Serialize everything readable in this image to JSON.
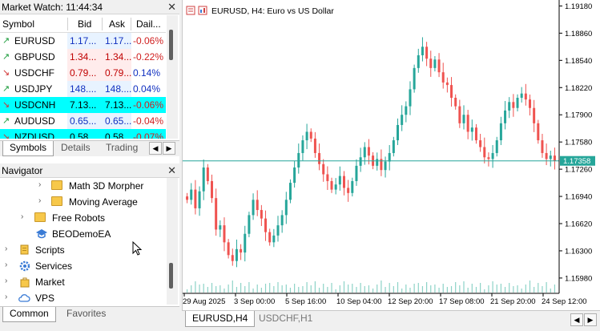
{
  "market_watch": {
    "title": "Market Watch: 11:44:34",
    "columns": [
      "Symbol",
      "Bid",
      "Ask",
      "Dail..."
    ],
    "rows": [
      {
        "arrow": "↗",
        "symbol": "EURUSD",
        "bid": "1.17...",
        "ask": "1.17...",
        "daily": "-0.06%",
        "dir": "up",
        "highlight": false,
        "bidbg": "#e8f3ff",
        "askbg": "#e8f3ff"
      },
      {
        "arrow": "↗",
        "symbol": "GBPUSD",
        "bid": "1.34...",
        "ask": "1.34...",
        "daily": "-0.22%",
        "dir": "up",
        "highlight": false,
        "bidbg": "#ffecec",
        "askbg": "#ffecec"
      },
      {
        "arrow": "↘",
        "symbol": "USDCHF",
        "bid": "0.79...",
        "ask": "0.79...",
        "daily": "0.14%",
        "dir": "down",
        "highlight": false,
        "bidbg": "#ffecec",
        "askbg": "#ffecec"
      },
      {
        "arrow": "↗",
        "symbol": "USDJPY",
        "bid": "148....",
        "ask": "148....",
        "daily": "0.04%",
        "dir": "up",
        "highlight": false,
        "bidbg": "#e8f3ff",
        "askbg": "#e8f3ff"
      },
      {
        "arrow": "↘",
        "symbol": "USDCNH",
        "bid": "7.13...",
        "ask": "7.13...",
        "daily": "-0.06%",
        "dir": "down",
        "highlight": true,
        "bidbg": "#00ffff",
        "askbg": "#00ffff"
      },
      {
        "arrow": "↗",
        "symbol": "AUDUSD",
        "bid": "0.65...",
        "ask": "0.65...",
        "daily": "-0.04%",
        "dir": "up",
        "highlight": false,
        "bidbg": "#e8f3ff",
        "askbg": "#e8f3ff"
      },
      {
        "arrow": "↘",
        "symbol": "NZDUSD",
        "bid": "0.58...",
        "ask": "0.58...",
        "daily": "-0.07%",
        "dir": "down",
        "highlight": true,
        "bidbg": "#00ffff",
        "askbg": "#00ffff"
      }
    ],
    "tabs": [
      "Symbols",
      "Details",
      "Trading"
    ]
  },
  "navigator": {
    "title": "Navigator",
    "items": [
      {
        "label": "Math 3D Morpher",
        "icon": "folder-icon",
        "expander": "›"
      },
      {
        "label": "Moving Average",
        "icon": "folder-icon",
        "expander": "›"
      },
      {
        "label": "Free Robots",
        "icon": "folder-icon",
        "expander": "›"
      },
      {
        "label": "BEODemoEA",
        "icon": "graduation-cap-icon",
        "expander": ""
      },
      {
        "label": "Scripts",
        "icon": "scripts-icon",
        "expander": "›"
      },
      {
        "label": "Services",
        "icon": "gear-icon",
        "expander": "›"
      },
      {
        "label": "Market",
        "icon": "market-bag-icon",
        "expander": "›"
      },
      {
        "label": "VPS",
        "icon": "cloud-icon",
        "expander": "›"
      }
    ],
    "tabs": [
      "Common",
      "Favorites"
    ]
  },
  "chart": {
    "title": "EURUSD, H4:  Euro vs US Dollar",
    "current_price": "1.17358",
    "tabs": [
      "EURUSD,H4",
      "USDCHF,H1"
    ],
    "colors": {
      "bull": "#26a69a",
      "bear": "#ef5350",
      "price_line": "#26a69a",
      "price_tag": "#26a69a"
    }
  },
  "chart_data": {
    "type": "candlestick",
    "symbol": "EURUSD",
    "timeframe": "H4",
    "y_ticks": [
      "1.19180",
      "1.18860",
      "1.18540",
      "1.18220",
      "1.17900",
      "1.17580",
      "1.17260",
      "1.16940",
      "1.16620",
      "1.16300",
      "1.15980"
    ],
    "x_ticks": [
      "29 Aug 2025",
      "3 Sep 00:00",
      "5 Sep 16:00",
      "10 Sep 04:00",
      "12 Sep 20:00",
      "17 Sep 08:00",
      "21 Sep 20:00",
      "24 Sep 12:00"
    ],
    "ylim": [
      1.158,
      1.1925
    ],
    "last_price": 1.17358,
    "closes": [
      1.169,
      1.1702,
      1.168,
      1.17,
      1.1728,
      1.1712,
      1.1692,
      1.1655,
      1.166,
      1.164,
      1.1625,
      1.1618,
      1.1632,
      1.1628,
      1.165,
      1.1672,
      1.169,
      1.1678,
      1.1668,
      1.1652,
      1.164,
      1.1648,
      1.166,
      1.1672,
      1.169,
      1.171,
      1.1728,
      1.1745,
      1.176,
      1.177,
      1.1762,
      1.1745,
      1.1732,
      1.172,
      1.1712,
      1.1702,
      1.1708,
      1.1718,
      1.1704,
      1.1698,
      1.1712,
      1.173,
      1.174,
      1.1752,
      1.1742,
      1.173,
      1.1738,
      1.1725,
      1.1735,
      1.1745,
      1.176,
      1.1778,
      1.179,
      1.18,
      1.182,
      1.1845,
      1.186,
      1.187,
      1.1856,
      1.1845,
      1.1855,
      1.184,
      1.1828,
      1.1825,
      1.181,
      1.18,
      1.178,
      1.179,
      1.177,
      1.1775,
      1.176,
      1.1752,
      1.174,
      1.1738,
      1.1745,
      1.176,
      1.178,
      1.1795,
      1.1805,
      1.1798,
      1.181,
      1.1815,
      1.1808,
      1.1798,
      1.178,
      1.176,
      1.1745,
      1.1738,
      1.1742,
      1.1736
    ],
    "grid": false
  }
}
